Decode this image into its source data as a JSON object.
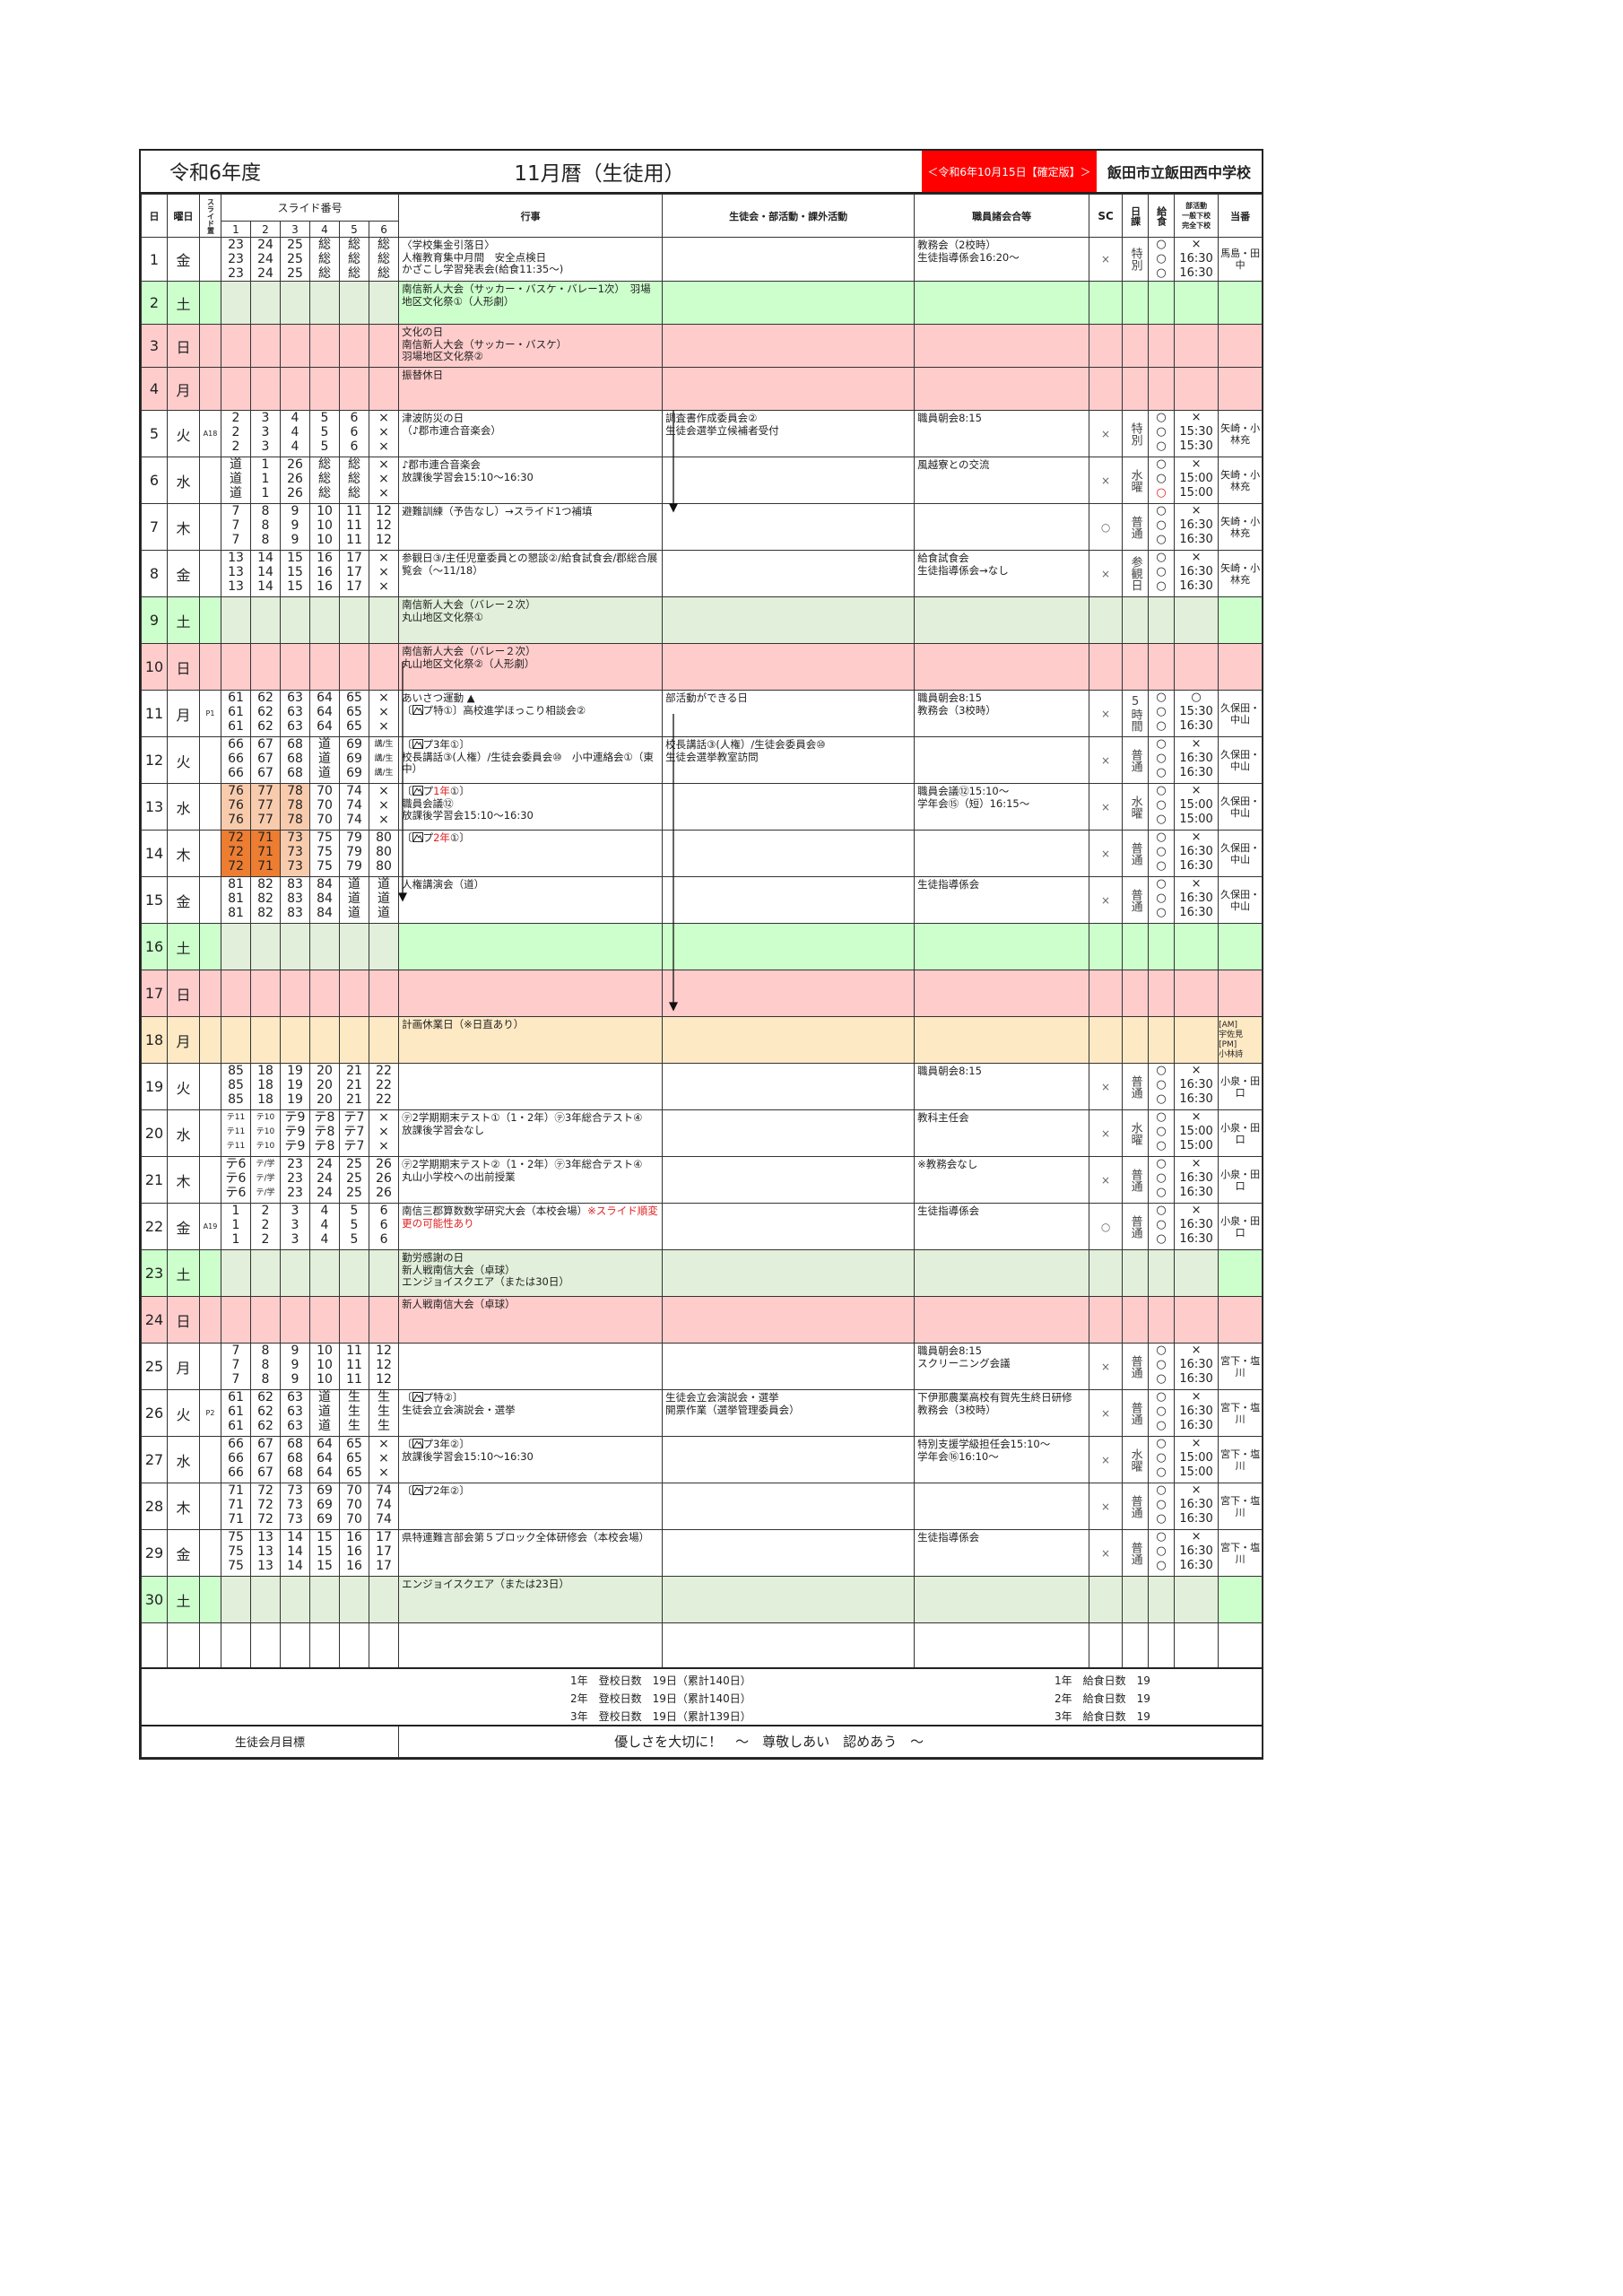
{
  "title": {
    "fiscal_year": "令和6年度",
    "month_title": "11月暦（生徒用）",
    "version": "＜令和6年10月15日【確定版】＞",
    "school": "飯田市立飯田西中学校"
  },
  "colors": {
    "saturday": "#ccffcc",
    "saturday_soft": "#e2efda",
    "holiday": "#ffcccc",
    "planned_off": "#fde9c4",
    "version_bg": "#ff0000",
    "highlight_light": "#f8cbad",
    "highlight_dark": "#ed7d31",
    "red_text": "#e02020"
  },
  "header": {
    "day": "日",
    "weekday": "曜日",
    "slide_place": "スライド置",
    "slide_no": "スライド番号",
    "slide_cols": [
      "1",
      "2",
      "3",
      "4",
      "5",
      "6"
    ],
    "events": "行事",
    "student": "生徒会・部活動・課外活動",
    "staff": "職員諸会合等",
    "sc": "SC",
    "schedule": "日課",
    "lunch": "給食",
    "club": [
      "部活動",
      "一般下校",
      "完全下校"
    ],
    "duty": "当番"
  },
  "rows": [
    {
      "day": "1",
      "wd": "金",
      "type": "school",
      "place": "",
      "slides": [
        "23",
        "24",
        "25",
        "総",
        "総",
        "総"
      ],
      "events": [
        "〈学校集金引落日〉",
        "人権教育集中月間　安全点検日",
        "かざこし学習発表会(給食11:35～)"
      ],
      "student": [],
      "staff": [
        "教務会（2校時）",
        "生徒指導係会16:20～"
      ],
      "sc": "×",
      "sched": "特別",
      "lunch": [
        "○",
        "○",
        "○"
      ],
      "club": [
        "×",
        "16:30",
        "16:30"
      ],
      "duty": "馬島・田中"
    },
    {
      "day": "2",
      "wd": "土",
      "type": "sat",
      "events": [
        "南信新人大会（サッカー・バスケ・バレー1次）　羽場地区文化祭①（人形劇）"
      ]
    },
    {
      "day": "3",
      "wd": "日",
      "type": "hol",
      "events": [
        "文化の日",
        "南信新人大会（サッカー・バスケ）",
        "羽場地区文化祭②"
      ]
    },
    {
      "day": "4",
      "wd": "月",
      "type": "hol",
      "events": [
        "振替休日"
      ]
    },
    {
      "day": "5",
      "wd": "火",
      "type": "school",
      "place": "A18",
      "slides": [
        "2",
        "3",
        "4",
        "5",
        "6",
        "×"
      ],
      "events": [
        "津波防災の日",
        "（♪郡市連合音楽会）"
      ],
      "student": [
        "調査書作成委員会②",
        "生徒会選挙立候補者受付"
      ],
      "staff": [
        "職員朝会8:15"
      ],
      "sc": "×",
      "sched": "特別",
      "lunch": [
        "○",
        "○",
        "○"
      ],
      "club": [
        "×",
        "15:30",
        "15:30"
      ],
      "duty": "矢崎・小林充"
    },
    {
      "day": "6",
      "wd": "水",
      "type": "school",
      "place": "",
      "slides": [
        "道",
        "1",
        "26",
        "総",
        "総",
        "×"
      ],
      "events": [
        "♪郡市連合音楽会",
        "放課後学習会15:10～16:30"
      ],
      "student": [],
      "staff": [
        "風越寮との交流"
      ],
      "sc": "×",
      "sched": "水曜",
      "lunch": [
        "○",
        "○",
        {
          "t": "○",
          "c": "#e02020"
        }
      ],
      "club": [
        "×",
        "15:00",
        "15:00"
      ],
      "duty": "矢崎・小林充"
    },
    {
      "day": "7",
      "wd": "木",
      "type": "school",
      "place": "",
      "slides": [
        "7",
        "8",
        "9",
        "10",
        "11",
        "12"
      ],
      "events": [
        "避難訓練（予告なし）→スライド1つ補填"
      ],
      "student": [],
      "staff": [],
      "sc": "○",
      "sched": "普通",
      "lunch": [
        "○",
        "○",
        "○"
      ],
      "club": [
        "×",
        "16:30",
        "16:30"
      ],
      "duty": "矢崎・小林充"
    },
    {
      "day": "8",
      "wd": "金",
      "type": "school",
      "place": "",
      "slides": [
        "13",
        "14",
        "15",
        "16",
        "17",
        "×"
      ],
      "events": [
        "参観日③/主任児童委員との懇談②/給食試食会/郡総合展覧会（～11/18）"
      ],
      "student": [],
      "staff": [
        "給食試食会",
        "生徒指導係会→なし"
      ],
      "sc": "×",
      "sched": "参観日",
      "lunch": [
        "○",
        "○",
        "○"
      ],
      "club": [
        "×",
        "16:30",
        "16:30"
      ],
      "duty": "矢崎・小林充"
    },
    {
      "day": "9",
      "wd": "土",
      "type": "sat2",
      "events": [
        "南信新人大会（バレー２次）",
        "丸山地区文化祭①"
      ]
    },
    {
      "day": "10",
      "wd": "日",
      "type": "hol",
      "events": [
        "南信新人大会（バレー２次）",
        "丸山地区文化祭②（人形劇）"
      ]
    },
    {
      "day": "11",
      "wd": "月",
      "type": "school",
      "place": "P1",
      "slides": [
        "61",
        "62",
        "63",
        "64",
        "65",
        "×"
      ],
      "events": [
        "あいさつ運動 ▲",
        [
          {
            "t": "〔"
          },
          {
            "icon": "mountain-icon"
          },
          {
            "t": "プ特①〕高校進学ほっこり相談会②"
          }
        ]
      ],
      "student": [
        "部活動ができる日"
      ],
      "staff": [
        "職員朝会8:15",
        "教務会（3校時）"
      ],
      "sc": "×",
      "sched": "5時間",
      "lunch": [
        "○",
        "○",
        "○"
      ],
      "club": [
        "○",
        "15:30",
        "16:30"
      ],
      "duty": "久保田・中山"
    },
    {
      "day": "12",
      "wd": "火",
      "type": "school",
      "place": "",
      "slides": [
        "66",
        "67",
        "68",
        "道",
        "69",
        "講/生"
      ],
      "events": [
        [
          {
            "t": "〔"
          },
          {
            "icon": "mountain-icon"
          },
          {
            "t": "プ3年①〕"
          }
        ],
        "校長講話③(人権）/生徒会委員会⑩　小中連絡会①（東中）"
      ],
      "student": [
        "校長講話③(人権）/生徒会委員会⑩",
        "生徒会選挙教室訪問"
      ],
      "staff": [],
      "sc": "×",
      "sched": "普通",
      "lunch": [
        "○",
        "○",
        "○"
      ],
      "club": [
        "×",
        "16:30",
        "16:30"
      ],
      "duty": "久保田・中山"
    },
    {
      "day": "13",
      "wd": "水",
      "type": "school",
      "place": "",
      "slides": [
        "76",
        "77",
        "78",
        "70",
        "74",
        "×"
      ],
      "hl": [
        "light",
        "light",
        "light",
        "",
        "",
        ""
      ],
      "events": [
        [
          {
            "t": "〔"
          },
          {
            "icon": "mountain-icon"
          },
          {
            "t": "プ"
          },
          {
            "t": "1年",
            "c": "#e02020"
          },
          {
            "t": "①〕"
          }
        ],
        "職員会議⑫",
        "放課後学習会15:10～16:30"
      ],
      "student": [],
      "staff": [
        "職員会議⑫15:10～",
        "学年会⑮（短）16:15～"
      ],
      "sc": "×",
      "sched": "水曜",
      "lunch": [
        "○",
        "○",
        "○"
      ],
      "club": [
        "×",
        "15:00",
        "15:00"
      ],
      "duty": "久保田・中山"
    },
    {
      "day": "14",
      "wd": "木",
      "type": "school",
      "place": "",
      "slides": [
        "72",
        "71",
        "73",
        "75",
        "79",
        "80"
      ],
      "hl": [
        "dark",
        "dark",
        "light",
        "",
        "",
        ""
      ],
      "events": [
        [
          {
            "t": "〔"
          },
          {
            "icon": "mountain-icon"
          },
          {
            "t": "プ"
          },
          {
            "t": "2年",
            "c": "#e02020"
          },
          {
            "t": "①〕"
          }
        ]
      ],
      "student": [],
      "staff": [],
      "sc": "×",
      "sched": "普通",
      "lunch": [
        "○",
        "○",
        "○"
      ],
      "club": [
        "×",
        "16:30",
        "16:30"
      ],
      "duty": "久保田・中山"
    },
    {
      "day": "15",
      "wd": "金",
      "type": "school",
      "place": "",
      "slides": [
        "81",
        "82",
        "83",
        "84",
        "道",
        "道"
      ],
      "events": [
        "人権講演会（道）"
      ],
      "student": [],
      "staff": [
        "生徒指導係会"
      ],
      "sc": "×",
      "sched": "普通",
      "lunch": [
        "○",
        "○",
        "○"
      ],
      "club": [
        "×",
        "16:30",
        "16:30"
      ],
      "duty": "久保田・中山"
    },
    {
      "day": "16",
      "wd": "土",
      "type": "sat",
      "events": []
    },
    {
      "day": "17",
      "wd": "日",
      "type": "hol",
      "events": []
    },
    {
      "day": "18",
      "wd": "月",
      "type": "off",
      "events": [
        "計画休業日（※日直あり）"
      ],
      "duty_lines": [
        "[AM]",
        "宇佐見",
        "[PM]",
        "小林詩"
      ]
    },
    {
      "day": "19",
      "wd": "火",
      "type": "school",
      "place": "",
      "slides": [
        "85",
        "18",
        "19",
        "20",
        "21",
        "22"
      ],
      "events": [],
      "student": [],
      "staff": [
        "職員朝会8:15"
      ],
      "sc": "×",
      "sched": "普通",
      "lunch": [
        "○",
        "○",
        "○"
      ],
      "club": [
        "×",
        "16:30",
        "16:30"
      ],
      "duty": "小泉・田口"
    },
    {
      "day": "20",
      "wd": "水",
      "type": "school",
      "place": "",
      "slides": [
        "テ11",
        "テ10",
        "テ9",
        "テ8",
        "テ7",
        "×"
      ],
      "events": [
        "㋢2学期期末テスト①（1・2年）㋢3年総合テスト④",
        "放課後学習会なし"
      ],
      "student": [],
      "staff": [
        "教科主任会"
      ],
      "sc": "×",
      "sched": "水曜",
      "lunch": [
        "○",
        "○",
        "○"
      ],
      "club": [
        "×",
        "15:00",
        "15:00"
      ],
      "duty": "小泉・田口"
    },
    {
      "day": "21",
      "wd": "木",
      "type": "school",
      "place": "",
      "slides": [
        "テ6",
        "テ/学",
        "23",
        "24",
        "25",
        "26"
      ],
      "events": [
        "㋢2学期期末テスト②（1・2年）㋢3年総合テスト④",
        "丸山小学校への出前授業"
      ],
      "student": [],
      "staff": [
        "※教務会なし"
      ],
      "sc": "×",
      "sched": "普通",
      "lunch": [
        "○",
        "○",
        "○"
      ],
      "club": [
        "×",
        "16:30",
        "16:30"
      ],
      "duty": "小泉・田口"
    },
    {
      "day": "22",
      "wd": "金",
      "type": "school",
      "place": "A19",
      "slides": [
        "1",
        "2",
        "3",
        "4",
        "5",
        "6"
      ],
      "events": [
        [
          {
            "t": "南信三郡算数数学研究大会（本校会場）"
          },
          {
            "t": "※スライド順変更の可能性あり",
            "c": "#e02020"
          }
        ]
      ],
      "student": [],
      "staff": [
        "生徒指導係会"
      ],
      "sc": "○",
      "sched": "普通",
      "lunch": [
        "○",
        "○",
        "○"
      ],
      "club": [
        "×",
        "16:30",
        "16:30"
      ],
      "duty": "小泉・田口"
    },
    {
      "day": "23",
      "wd": "土",
      "type": "sat2",
      "events": [
        "勤労感謝の日",
        "新人戦南信大会（卓球）",
        "エンジョイスクエア（または30日）"
      ]
    },
    {
      "day": "24",
      "wd": "日",
      "type": "hol",
      "events": [
        "新人戦南信大会（卓球）"
      ]
    },
    {
      "day": "25",
      "wd": "月",
      "type": "school",
      "place": "",
      "slides": [
        "7",
        "8",
        "9",
        "10",
        "11",
        "12"
      ],
      "events": [],
      "student": [],
      "staff": [
        "職員朝会8:15",
        "スクリーニング会議"
      ],
      "sc": "×",
      "sched": "普通",
      "lunch": [
        "○",
        "○",
        "○"
      ],
      "club": [
        "×",
        "16:30",
        "16:30"
      ],
      "duty": "宮下・塩川"
    },
    {
      "day": "26",
      "wd": "火",
      "type": "school",
      "place": "P2",
      "slides": [
        "61",
        "62",
        "63",
        "道",
        "生",
        "生"
      ],
      "events": [
        [
          {
            "t": "〔"
          },
          {
            "icon": "mountain-icon"
          },
          {
            "t": "プ特②〕"
          }
        ],
        "生徒会立会演説会・選挙"
      ],
      "student": [
        "生徒会立会演説会・選挙",
        "開票作業（選挙管理委員会）"
      ],
      "staff": [
        "下伊那農業高校有賀先生終日研修",
        "教務会（3校時）"
      ],
      "sc": "×",
      "sched": "普通",
      "lunch": [
        "○",
        "○",
        "○"
      ],
      "club": [
        "×",
        "16:30",
        "16:30"
      ],
      "duty": "宮下・塩川"
    },
    {
      "day": "27",
      "wd": "水",
      "type": "school",
      "place": "",
      "slides": [
        "66",
        "67",
        "68",
        "64",
        "65",
        "×"
      ],
      "events": [
        [
          {
            "t": "〔"
          },
          {
            "icon": "mountain-icon"
          },
          {
            "t": "プ3年②〕"
          }
        ],
        "放課後学習会15:10～16:30"
      ],
      "student": [],
      "staff": [
        "特別支援学級担任会15:10～",
        "学年会⑯16:10～"
      ],
      "sc": "×",
      "sched": "水曜",
      "lunch": [
        "○",
        "○",
        "○"
      ],
      "club": [
        "×",
        "15:00",
        "15:00"
      ],
      "duty": "宮下・塩川"
    },
    {
      "day": "28",
      "wd": "木",
      "type": "school",
      "place": "",
      "slides": [
        "71",
        "72",
        "73",
        "69",
        "70",
        "74"
      ],
      "events": [
        [
          {
            "t": "〔"
          },
          {
            "icon": "mountain-icon"
          },
          {
            "t": "プ2年②〕"
          }
        ]
      ],
      "student": [],
      "staff": [],
      "sc": "×",
      "sched": "普通",
      "lunch": [
        "○",
        "○",
        "○"
      ],
      "club": [
        "×",
        "16:30",
        "16:30"
      ],
      "duty": "宮下・塩川"
    },
    {
      "day": "29",
      "wd": "金",
      "type": "school",
      "place": "",
      "slides": [
        "75",
        "13",
        "14",
        "15",
        "16",
        "17"
      ],
      "events": [
        "県特連難言部会第５ブロック全体研修会（本校会場）"
      ],
      "student": [],
      "staff": [
        "生徒指導係会"
      ],
      "sc": "×",
      "sched": "普通",
      "lunch": [
        "○",
        "○",
        "○"
      ],
      "club": [
        "×",
        "16:30",
        "16:30"
      ],
      "duty": "宮下・塩川"
    },
    {
      "day": "30",
      "wd": "土",
      "type": "sat2",
      "events": [
        "エンジョイスクエア（または23日）"
      ]
    }
  ],
  "totals": {
    "attendance": [
      "1年　登校日数　19日（累計140日）",
      "2年　登校日数　19日（累計140日）",
      "3年　登校日数　19日（累計139日）"
    ],
    "lunch_days": [
      "1年　給食日数　19",
      "2年　給食日数　19",
      "3年　給食日数　19"
    ]
  },
  "goal": {
    "label": "生徒会月目標",
    "text": "優しさを大切に！　～　尊敬しあい　認めあう　～"
  }
}
